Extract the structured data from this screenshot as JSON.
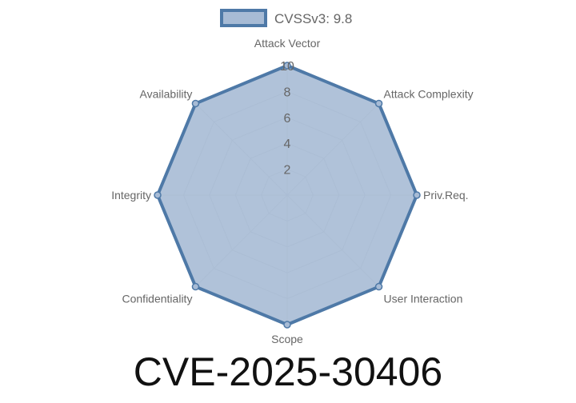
{
  "chart_data": {
    "type": "radar",
    "title": "CVE-2025-30406",
    "categories": [
      "Attack Vector",
      "Attack Complexity",
      "Priv.Req.",
      "User Interaction",
      "Scope",
      "Confidentiality",
      "Integrity",
      "Availability"
    ],
    "series": [
      {
        "name": "CVSSv3: 9.8",
        "values": [
          10,
          10,
          10,
          10,
          10,
          10,
          10,
          10
        ]
      }
    ],
    "rlim": [
      0,
      10
    ],
    "ticks": [
      "2",
      "4",
      "6",
      "8",
      "10"
    ],
    "tick_values": [
      2,
      4,
      6,
      8,
      10
    ],
    "legend": "top",
    "grid": true,
    "colors": {
      "stroke": "#4e79a7",
      "fill": "#a7bbd5",
      "grid": "#c8c8c8"
    }
  }
}
